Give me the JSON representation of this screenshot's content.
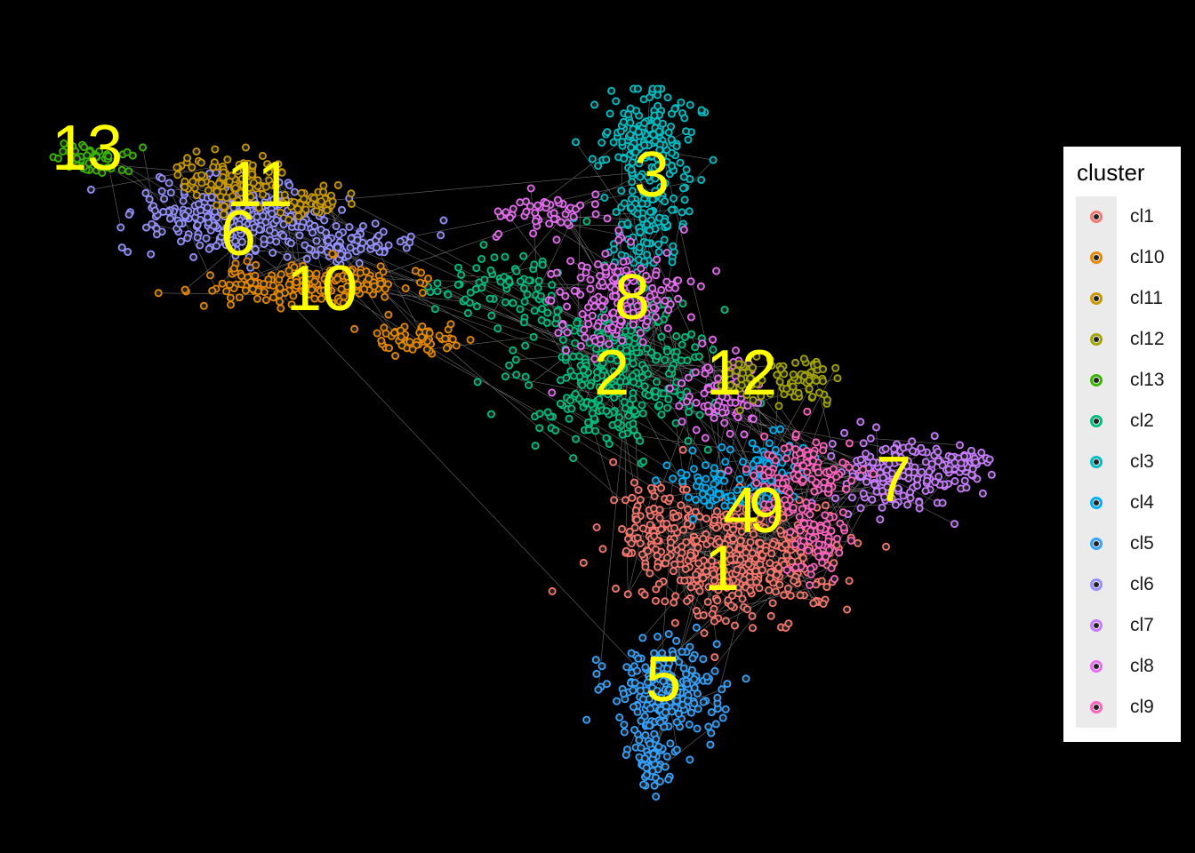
{
  "chart_data": {
    "type": "scatter",
    "title": "",
    "xlabel": "",
    "ylabel": "",
    "grid": false,
    "background": "#000000",
    "edge_color": "#bdbdbd",
    "cluster_label_color": "#ffff00",
    "legend": {
      "title": "cluster",
      "placement": "right",
      "entries": [
        {
          "label": "cl1",
          "color": "#f8766d"
        },
        {
          "label": "cl10",
          "color": "#e58700"
        },
        {
          "label": "cl11",
          "color": "#c99800"
        },
        {
          "label": "cl12",
          "color": "#a3a500"
        },
        {
          "label": "cl13",
          "color": "#39b600"
        },
        {
          "label": "cl2",
          "color": "#00bf7d"
        },
        {
          "label": "cl3",
          "color": "#00bfc4"
        },
        {
          "label": "cl4",
          "color": "#00b0f6"
        },
        {
          "label": "cl5",
          "color": "#35a2ff"
        },
        {
          "label": "cl6",
          "color": "#9590ff"
        },
        {
          "label": "cl7",
          "color": "#c77cff"
        },
        {
          "label": "cl8",
          "color": "#e76bf3"
        },
        {
          "label": "cl9",
          "color": "#ff62bc"
        }
      ]
    },
    "cluster_labels": [
      "13",
      "11",
      "6",
      "10",
      "3",
      "8",
      "2",
      "12",
      "7",
      "4",
      "9",
      "1",
      "5"
    ],
    "series": [
      {
        "name": "cl1",
        "label": "1"
      },
      {
        "name": "cl2",
        "label": "2"
      },
      {
        "name": "cl3",
        "label": "3"
      },
      {
        "name": "cl4",
        "label": "4"
      },
      {
        "name": "cl5",
        "label": "5"
      },
      {
        "name": "cl6",
        "label": "6"
      },
      {
        "name": "cl7",
        "label": "7"
      },
      {
        "name": "cl8",
        "label": "8"
      },
      {
        "name": "cl9",
        "label": "9"
      },
      {
        "name": "cl10",
        "label": "10"
      },
      {
        "name": "cl11",
        "label": "11"
      },
      {
        "name": "cl12",
        "label": "12"
      },
      {
        "name": "cl13",
        "label": "13"
      }
    ]
  }
}
